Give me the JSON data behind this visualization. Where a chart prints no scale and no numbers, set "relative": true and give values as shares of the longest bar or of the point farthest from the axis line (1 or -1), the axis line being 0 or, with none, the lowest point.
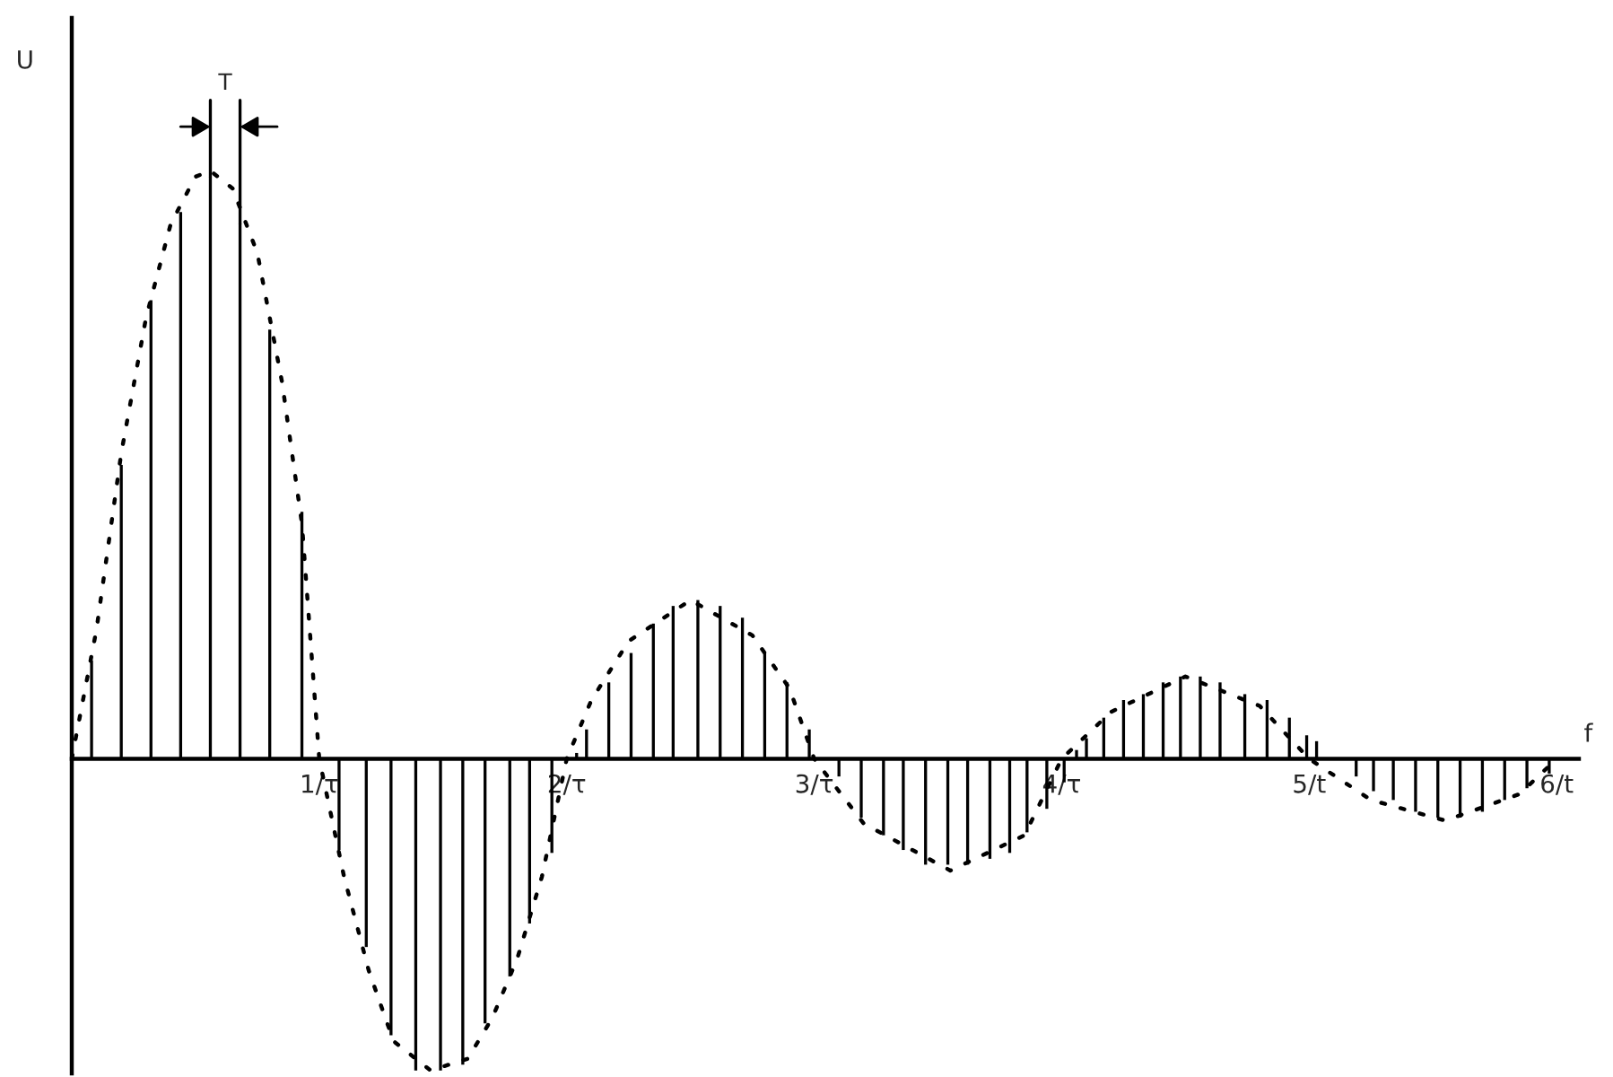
{
  "chart_data": {
    "type": "bar",
    "relative": true,
    "xlabel": "f",
    "ylabel": "U",
    "annotations": [
      "T"
    ],
    "grid": false,
    "legend": false,
    "xlim": [
      0,
      6.09
    ],
    "xticks": [
      {
        "value": 1,
        "label": "1/τ"
      },
      {
        "value": 2,
        "label": "2/τ"
      },
      {
        "value": 3,
        "label": "3/τ"
      },
      {
        "value": 4,
        "label": "4/τ"
      },
      {
        "value": 5,
        "label": "5/t"
      },
      {
        "value": 6,
        "label": "6/t"
      }
    ],
    "series": [
      {
        "color": "#000000",
        "x": [
          0.08,
          0.2,
          0.32,
          0.44,
          0.56,
          0.68,
          0.8,
          0.93,
          1.08,
          1.19,
          1.29,
          1.39,
          1.49,
          1.58,
          1.67,
          1.77,
          1.85,
          1.94,
          2.04,
          2.08,
          2.17,
          2.26,
          2.35,
          2.43,
          2.53,
          2.62,
          2.71,
          2.8,
          2.89,
          2.98,
          3.1,
          3.19,
          3.28,
          3.36,
          3.45,
          3.54,
          3.62,
          3.71,
          3.79,
          3.86,
          3.94,
          4.01,
          4.06,
          4.1,
          4.17,
          4.25,
          4.33,
          4.41,
          4.48,
          4.56,
          4.64,
          4.74,
          4.83,
          4.92,
          4.99,
          5.03,
          5.19,
          5.26,
          5.34,
          5.43,
          5.52,
          5.61,
          5.7,
          5.79,
          5.88,
          5.97
        ],
        "values": [
          0.167,
          0.5,
          0.78,
          0.93,
          0.99,
          0.91,
          0.73,
          0.42,
          -0.155,
          -0.32,
          -0.47,
          -0.53,
          -0.53,
          -0.52,
          -0.45,
          -0.37,
          -0.28,
          -0.16,
          0.01,
          0.05,
          0.13,
          0.18,
          0.23,
          0.26,
          0.27,
          0.26,
          0.24,
          0.18,
          0.13,
          0.05,
          -0.03,
          -0.1,
          -0.13,
          -0.155,
          -0.18,
          -0.18,
          -0.18,
          -0.17,
          -0.16,
          -0.125,
          -0.085,
          -0.04,
          0.015,
          0.035,
          0.07,
          0.1,
          0.11,
          0.13,
          0.14,
          0.14,
          0.13,
          0.11,
          0.1,
          0.07,
          0.04,
          0.03,
          -0.03,
          -0.055,
          -0.07,
          -0.09,
          -0.1,
          -0.1,
          -0.09,
          -0.07,
          -0.05,
          -0.025
        ]
      },
      {
        "type": "line",
        "color": "#000000",
        "line_style": "dotted",
        "x": [
          0,
          0.1,
          0.2,
          0.3,
          0.4,
          0.5,
          0.56,
          0.65,
          0.75,
          0.85,
          0.93,
          1.0,
          1.1,
          1.2,
          1.3,
          1.45,
          1.6,
          1.7,
          1.8,
          1.9,
          2.0,
          2.1,
          2.25,
          2.5,
          2.75,
          2.9,
          3.0,
          3.2,
          3.55,
          3.85,
          4.0,
          4.2,
          4.5,
          4.8,
          5.0,
          5.25,
          5.55,
          5.85,
          6.0
        ],
        "values": [
          0,
          0.22,
          0.52,
          0.75,
          0.91,
          0.99,
          1.0,
          0.97,
          0.86,
          0.64,
          0.4,
          0,
          -0.2,
          -0.36,
          -0.48,
          -0.53,
          -0.51,
          -0.44,
          -0.34,
          -0.2,
          0,
          0.1,
          0.2,
          0.27,
          0.21,
          0.12,
          0,
          -0.11,
          -0.19,
          -0.13,
          0,
          0.08,
          0.14,
          0.09,
          0,
          -0.07,
          -0.105,
          -0.06,
          0
        ]
      }
    ]
  }
}
